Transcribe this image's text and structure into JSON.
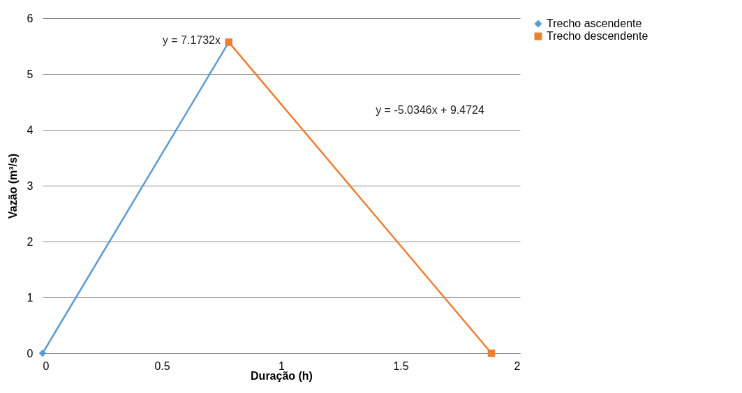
{
  "chart_data": {
    "type": "line",
    "xlabel": "Duração  (h)",
    "ylabel": "Vazão  (m³/s)",
    "xlim": [
      0,
      2
    ],
    "xticks": [
      0,
      0.5,
      1,
      1.5,
      2
    ],
    "ylim": [
      0,
      6
    ],
    "yticks": [
      0,
      1,
      2,
      3,
      4,
      5,
      6
    ],
    "grid": "y",
    "legend": "right",
    "line_style": "solid",
    "series": [
      {
        "name": "Trecho ascendente",
        "color": "#5b9bd5",
        "marker": "diamond",
        "x": [
          0,
          0.78
        ],
        "values": [
          0,
          5.57
        ]
      },
      {
        "name": "Trecho descendente",
        "color": "#ed7d31",
        "marker": "square",
        "x": [
          0.78,
          1.88
        ],
        "values": [
          5.57,
          0
        ]
      }
    ],
    "annotations": [
      "y = 7.1732x",
      "y = -5.0346x + 9.4724"
    ]
  }
}
